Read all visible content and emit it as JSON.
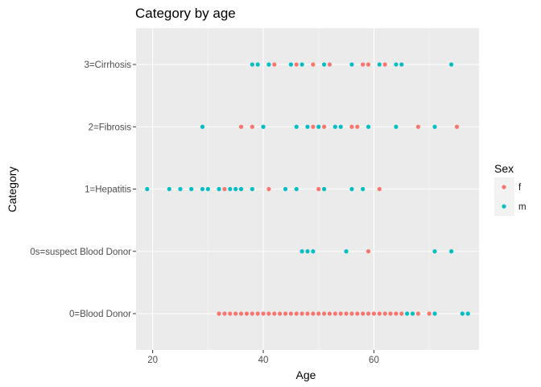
{
  "chart_data": {
    "type": "scatter",
    "title": "Category by age",
    "xlabel": "Age",
    "ylabel": "Category",
    "xlim": [
      17,
      79
    ],
    "x_ticks": [
      20,
      40,
      60
    ],
    "categories": [
      "0=Blood Donor",
      "0s=suspect Blood Donor",
      "1=Hepatitis",
      "2=Fibrosis",
      "3=Cirrhosis"
    ],
    "grid": true,
    "legend": {
      "title": "Sex",
      "position": "right",
      "entries": [
        {
          "name": "f",
          "color": "#F8766D"
        },
        {
          "name": "m",
          "color": "#00BFC4"
        }
      ]
    },
    "series": [
      {
        "name": "f",
        "color": "#F8766D",
        "points": [
          {
            "x": 32,
            "y": "0=Blood Donor"
          },
          {
            "x": 33,
            "y": "0=Blood Donor"
          },
          {
            "x": 34,
            "y": "0=Blood Donor"
          },
          {
            "x": 35,
            "y": "0=Blood Donor"
          },
          {
            "x": 36,
            "y": "0=Blood Donor"
          },
          {
            "x": 37,
            "y": "0=Blood Donor"
          },
          {
            "x": 38,
            "y": "0=Blood Donor"
          },
          {
            "x": 39,
            "y": "0=Blood Donor"
          },
          {
            "x": 40,
            "y": "0=Blood Donor"
          },
          {
            "x": 41,
            "y": "0=Blood Donor"
          },
          {
            "x": 42,
            "y": "0=Blood Donor"
          },
          {
            "x": 43,
            "y": "0=Blood Donor"
          },
          {
            "x": 44,
            "y": "0=Blood Donor"
          },
          {
            "x": 45,
            "y": "0=Blood Donor"
          },
          {
            "x": 46,
            "y": "0=Blood Donor"
          },
          {
            "x": 47,
            "y": "0=Blood Donor"
          },
          {
            "x": 48,
            "y": "0=Blood Donor"
          },
          {
            "x": 49,
            "y": "0=Blood Donor"
          },
          {
            "x": 50,
            "y": "0=Blood Donor"
          },
          {
            "x": 51,
            "y": "0=Blood Donor"
          },
          {
            "x": 52,
            "y": "0=Blood Donor"
          },
          {
            "x": 53,
            "y": "0=Blood Donor"
          },
          {
            "x": 54,
            "y": "0=Blood Donor"
          },
          {
            "x": 55,
            "y": "0=Blood Donor"
          },
          {
            "x": 56,
            "y": "0=Blood Donor"
          },
          {
            "x": 57,
            "y": "0=Blood Donor"
          },
          {
            "x": 58,
            "y": "0=Blood Donor"
          },
          {
            "x": 59,
            "y": "0=Blood Donor"
          },
          {
            "x": 60,
            "y": "0=Blood Donor"
          },
          {
            "x": 61,
            "y": "0=Blood Donor"
          },
          {
            "x": 62,
            "y": "0=Blood Donor"
          },
          {
            "x": 63,
            "y": "0=Blood Donor"
          },
          {
            "x": 64,
            "y": "0=Blood Donor"
          },
          {
            "x": 65,
            "y": "0=Blood Donor"
          },
          {
            "x": 68,
            "y": "0=Blood Donor"
          },
          {
            "x": 70,
            "y": "0=Blood Donor"
          },
          {
            "x": 59,
            "y": "0s=suspect Blood Donor"
          },
          {
            "x": 33,
            "y": "1=Hepatitis"
          },
          {
            "x": 41,
            "y": "1=Hepatitis"
          },
          {
            "x": 50,
            "y": "1=Hepatitis"
          },
          {
            "x": 61,
            "y": "1=Hepatitis"
          },
          {
            "x": 36,
            "y": "2=Fibrosis"
          },
          {
            "x": 38,
            "y": "2=Fibrosis"
          },
          {
            "x": 49,
            "y": "2=Fibrosis"
          },
          {
            "x": 51,
            "y": "2=Fibrosis"
          },
          {
            "x": 56,
            "y": "2=Fibrosis"
          },
          {
            "x": 57,
            "y": "2=Fibrosis"
          },
          {
            "x": 68,
            "y": "2=Fibrosis"
          },
          {
            "x": 75,
            "y": "2=Fibrosis"
          },
          {
            "x": 42,
            "y": "3=Cirrhosis"
          },
          {
            "x": 46,
            "y": "3=Cirrhosis"
          },
          {
            "x": 49,
            "y": "3=Cirrhosis"
          },
          {
            "x": 52,
            "y": "3=Cirrhosis"
          },
          {
            "x": 58,
            "y": "3=Cirrhosis"
          },
          {
            "x": 59,
            "y": "3=Cirrhosis"
          },
          {
            "x": 62,
            "y": "3=Cirrhosis"
          }
        ]
      },
      {
        "name": "m",
        "color": "#00BFC4",
        "points": [
          {
            "x": 66,
            "y": "0=Blood Donor"
          },
          {
            "x": 67,
            "y": "0=Blood Donor"
          },
          {
            "x": 71,
            "y": "0=Blood Donor"
          },
          {
            "x": 76,
            "y": "0=Blood Donor"
          },
          {
            "x": 77,
            "y": "0=Blood Donor"
          },
          {
            "x": 47,
            "y": "0s=suspect Blood Donor"
          },
          {
            "x": 48,
            "y": "0s=suspect Blood Donor"
          },
          {
            "x": 49,
            "y": "0s=suspect Blood Donor"
          },
          {
            "x": 55,
            "y": "0s=suspect Blood Donor"
          },
          {
            "x": 71,
            "y": "0s=suspect Blood Donor"
          },
          {
            "x": 74,
            "y": "0s=suspect Blood Donor"
          },
          {
            "x": 19,
            "y": "1=Hepatitis"
          },
          {
            "x": 23,
            "y": "1=Hepatitis"
          },
          {
            "x": 25,
            "y": "1=Hepatitis"
          },
          {
            "x": 27,
            "y": "1=Hepatitis"
          },
          {
            "x": 29,
            "y": "1=Hepatitis"
          },
          {
            "x": 30,
            "y": "1=Hepatitis"
          },
          {
            "x": 32,
            "y": "1=Hepatitis"
          },
          {
            "x": 34,
            "y": "1=Hepatitis"
          },
          {
            "x": 35,
            "y": "1=Hepatitis"
          },
          {
            "x": 36,
            "y": "1=Hepatitis"
          },
          {
            "x": 38,
            "y": "1=Hepatitis"
          },
          {
            "x": 44,
            "y": "1=Hepatitis"
          },
          {
            "x": 46,
            "y": "1=Hepatitis"
          },
          {
            "x": 51,
            "y": "1=Hepatitis"
          },
          {
            "x": 56,
            "y": "1=Hepatitis"
          },
          {
            "x": 58,
            "y": "1=Hepatitis"
          },
          {
            "x": 29,
            "y": "2=Fibrosis"
          },
          {
            "x": 40,
            "y": "2=Fibrosis"
          },
          {
            "x": 46,
            "y": "2=Fibrosis"
          },
          {
            "x": 48,
            "y": "2=Fibrosis"
          },
          {
            "x": 50,
            "y": "2=Fibrosis"
          },
          {
            "x": 53,
            "y": "2=Fibrosis"
          },
          {
            "x": 54,
            "y": "2=Fibrosis"
          },
          {
            "x": 59,
            "y": "2=Fibrosis"
          },
          {
            "x": 64,
            "y": "2=Fibrosis"
          },
          {
            "x": 71,
            "y": "2=Fibrosis"
          },
          {
            "x": 38,
            "y": "3=Cirrhosis"
          },
          {
            "x": 39,
            "y": "3=Cirrhosis"
          },
          {
            "x": 41,
            "y": "3=Cirrhosis"
          },
          {
            "x": 45,
            "y": "3=Cirrhosis"
          },
          {
            "x": 47,
            "y": "3=Cirrhosis"
          },
          {
            "x": 51,
            "y": "3=Cirrhosis"
          },
          {
            "x": 56,
            "y": "3=Cirrhosis"
          },
          {
            "x": 61,
            "y": "3=Cirrhosis"
          },
          {
            "x": 64,
            "y": "3=Cirrhosis"
          },
          {
            "x": 65,
            "y": "3=Cirrhosis"
          },
          {
            "x": 74,
            "y": "3=Cirrhosis"
          }
        ]
      }
    ],
    "colors": {
      "panel_background": "#EBEBEB",
      "grid_major": "#FFFFFF",
      "grid_minor": "#F5F5F5",
      "tick_text": "#4D4D4D"
    }
  }
}
